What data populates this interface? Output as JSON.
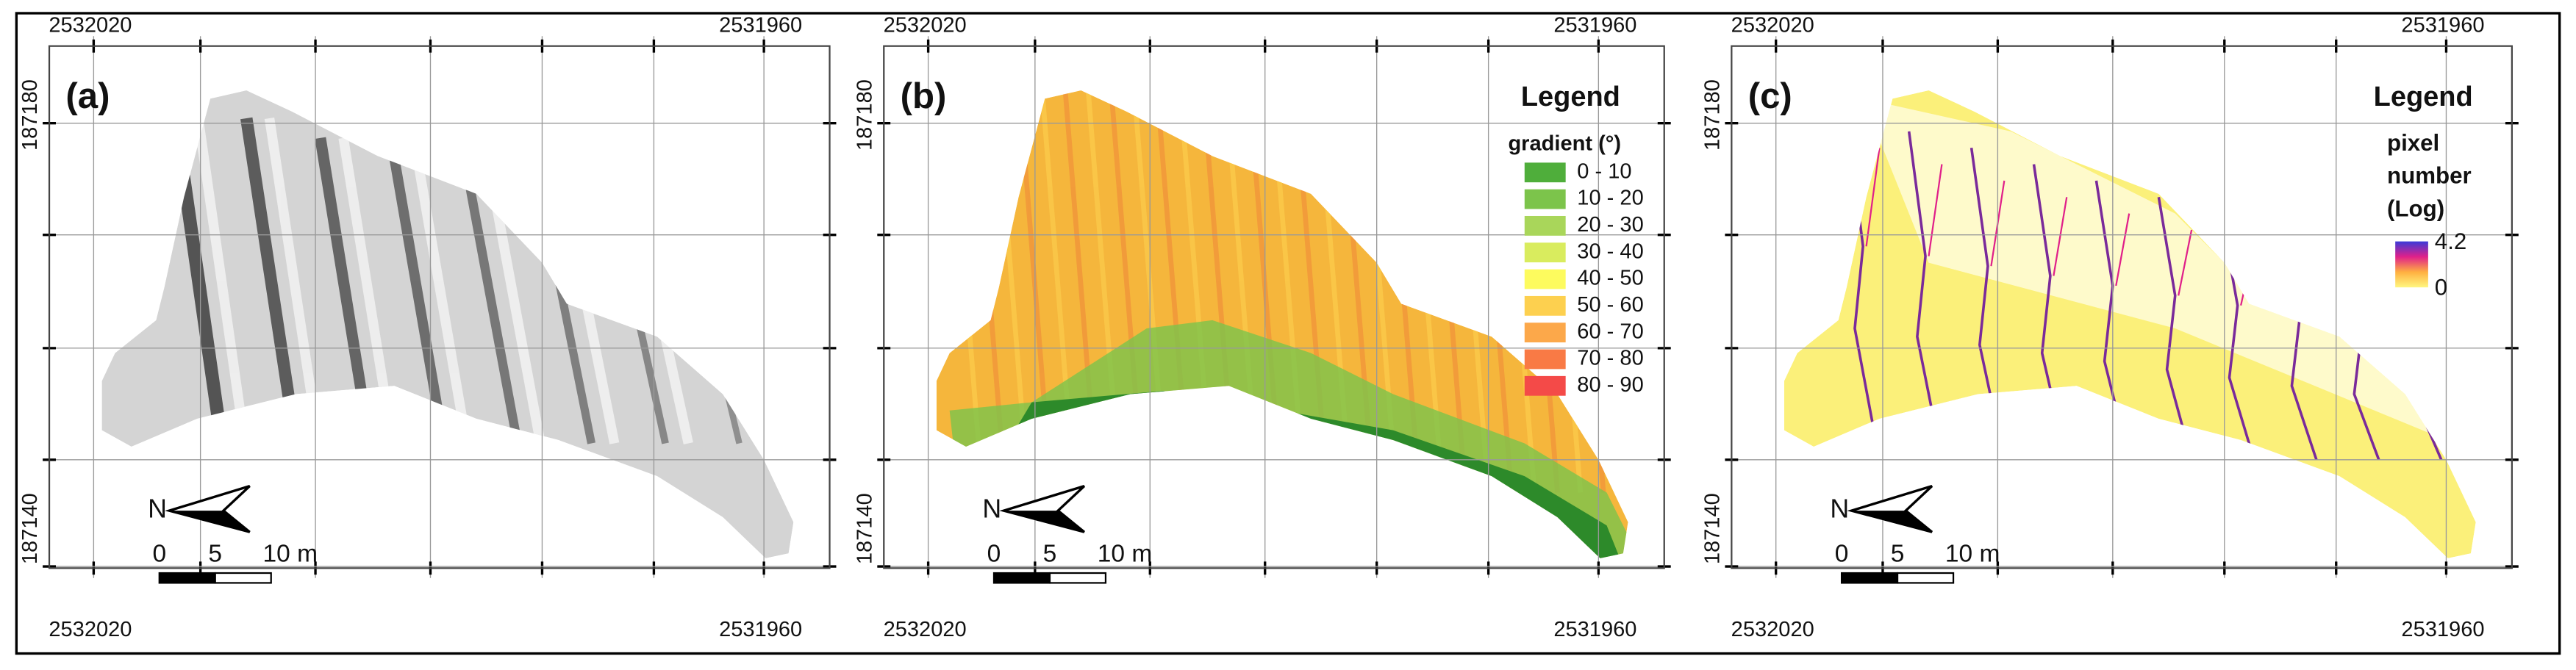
{
  "panels": [
    {
      "label": "(a)",
      "top_coords": [
        "2532020",
        "2531960"
      ],
      "bottom_coords": [
        "2532020",
        "2531960"
      ],
      "left_coords": [
        "187180",
        "187140"
      ],
      "north": "N",
      "scale": [
        "0",
        "5",
        "10 m"
      ]
    },
    {
      "label": "(b)",
      "top_coords": [
        "2532020",
        "2531960"
      ],
      "bottom_coords": [
        "2532020",
        "2531960"
      ],
      "left_coords": [
        "187180",
        "187140"
      ],
      "north": "N",
      "scale": [
        "0",
        "5",
        "10 m"
      ],
      "legend": {
        "title": "Legend",
        "subtitle": "gradient (°)",
        "classes": [
          {
            "label": "0 - 10",
            "color": "#4fae3b"
          },
          {
            "label": "10 - 20",
            "color": "#7cc44b"
          },
          {
            "label": "20 - 30",
            "color": "#a9d65a"
          },
          {
            "label": "30 - 40",
            "color": "#d9ec5e"
          },
          {
            "label": "40 - 50",
            "color": "#fdfb5e"
          },
          {
            "label": "50 - 60",
            "color": "#fdd04f"
          },
          {
            "label": "60 - 70",
            "color": "#fca84a"
          },
          {
            "label": "70 - 80",
            "color": "#f97a45"
          },
          {
            "label": "80 - 90",
            "color": "#f44a48"
          }
        ]
      }
    },
    {
      "label": "(c)",
      "top_coords": [
        "2532020",
        "2531960"
      ],
      "bottom_coords": [
        "2532020",
        "2531960"
      ],
      "left_coords": [
        "187180",
        "187140"
      ],
      "north": "N",
      "scale": [
        "0",
        "5",
        "10 m"
      ],
      "legend": {
        "title": "Legend",
        "subtitle_lines": [
          "pixel",
          "number",
          "(Log)"
        ],
        "max": 4.2,
        "min": 0,
        "colors": [
          "#3a3ad8",
          "#e0208a",
          "#ffb040",
          "#fff780"
        ]
      }
    }
  ]
}
